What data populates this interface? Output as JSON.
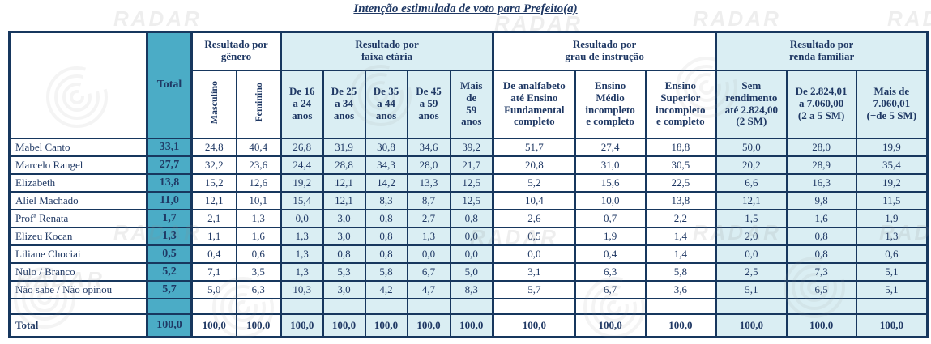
{
  "title": "Intenção estimulada de voto para Prefeito(a)",
  "watermark_text": "RADAR",
  "colors": {
    "navy_text": "#1F3864",
    "border": "#17375E",
    "teal_accent": "#4BACC6",
    "light_blue": "#DAEEF3"
  },
  "table": {
    "total_label": "Total",
    "groups": [
      {
        "label": "Resultado por\ngênero",
        "bg": "white",
        "vertical": true,
        "columns": [
          "Masculino",
          "Feminino"
        ]
      },
      {
        "label": "Resultado por\nfaixa etária",
        "bg": "light",
        "vertical": false,
        "columns": [
          "De 16\na 24\nanos",
          "De 25\na 34\nanos",
          "De 35\na 44\nanos",
          "De 45\na 59\nanos",
          "Mais\nde\n59\nanos"
        ]
      },
      {
        "label": "Resultado por\ngrau de instrução",
        "bg": "white",
        "vertical": false,
        "columns": [
          "De analfabeto\naté Ensino\nFundamental\ncompleto",
          "Ensino\nMédio\nincompleto\ne completo",
          "Ensino\nSuperior\nincompleto\ne completo"
        ]
      },
      {
        "label": "Resultado por\nrenda familiar",
        "bg": "light",
        "vertical": false,
        "columns": [
          "Sem\nrendimento\naté 2.824,00\n(2 SM)",
          "De 2.824,01\na 7.060,00\n(2 a 5 SM)",
          "Mais de\n7.060,01\n(+de 5 SM)"
        ]
      }
    ],
    "rows": [
      {
        "label": "Mabel Canto",
        "total": "33,1",
        "values": [
          "24,8",
          "40,4",
          "26,8",
          "31,9",
          "30,8",
          "34,6",
          "39,2",
          "51,7",
          "27,4",
          "18,8",
          "50,0",
          "28,0",
          "19,9"
        ]
      },
      {
        "label": "Marcelo Rangel",
        "total": "27,7",
        "values": [
          "32,2",
          "23,6",
          "24,4",
          "28,8",
          "34,3",
          "28,0",
          "21,7",
          "20,8",
          "31,0",
          "30,5",
          "20,2",
          "28,9",
          "35,4"
        ]
      },
      {
        "label": "Elizabeth",
        "total": "13,8",
        "values": [
          "15,2",
          "12,6",
          "19,2",
          "12,1",
          "14,2",
          "13,3",
          "12,5",
          "5,2",
          "15,6",
          "22,5",
          "6,6",
          "16,3",
          "19,2"
        ]
      },
      {
        "label": "Aliel Machado",
        "total": "11,0",
        "values": [
          "12,1",
          "10,1",
          "15,4",
          "12,1",
          "8,3",
          "8,7",
          "12,5",
          "10,4",
          "10,0",
          "13,8",
          "12,1",
          "9,8",
          "11,5"
        ]
      },
      {
        "label": "Profª Renata",
        "total": "1,7",
        "values": [
          "2,1",
          "1,3",
          "0,0",
          "3,0",
          "0,8",
          "2,7",
          "0,8",
          "2,6",
          "0,7",
          "2,2",
          "1,5",
          "1,6",
          "1,9"
        ]
      },
      {
        "label": "Elizeu Kocan",
        "total": "1,3",
        "values": [
          "1,1",
          "1,6",
          "1,3",
          "3,0",
          "0,8",
          "1,3",
          "0,0",
          "0,5",
          "1,9",
          "1,4",
          "2,0",
          "0,8",
          "1,3"
        ]
      },
      {
        "label": "Liliane Chociai",
        "total": "0,5",
        "values": [
          "0,4",
          "0,6",
          "1,3",
          "0,8",
          "0,8",
          "0,0",
          "0,0",
          "0,0",
          "0,4",
          "1,4",
          "0,0",
          "0,8",
          "0,6"
        ]
      },
      {
        "label": "Nulo / Branco",
        "total": "5,2",
        "values": [
          "7,1",
          "3,5",
          "1,3",
          "5,3",
          "5,8",
          "6,7",
          "5,0",
          "3,1",
          "6,3",
          "5,8",
          "2,5",
          "7,3",
          "5,1"
        ]
      },
      {
        "label": "Não sabe / Não opinou",
        "total": "5,7",
        "values": [
          "5,0",
          "6,3",
          "10,3",
          "3,0",
          "4,2",
          "4,7",
          "8,3",
          "5,7",
          "6,7",
          "3,6",
          "5,1",
          "6,5",
          "5,1"
        ]
      }
    ],
    "total_row": {
      "label": "Total",
      "total": "100,0",
      "values": [
        "100,0",
        "100,0",
        "100,0",
        "100,0",
        "100,0",
        "100,0",
        "100,0",
        "100,0",
        "100,0",
        "100,0",
        "100,0",
        "100,0",
        "100,0"
      ]
    }
  }
}
